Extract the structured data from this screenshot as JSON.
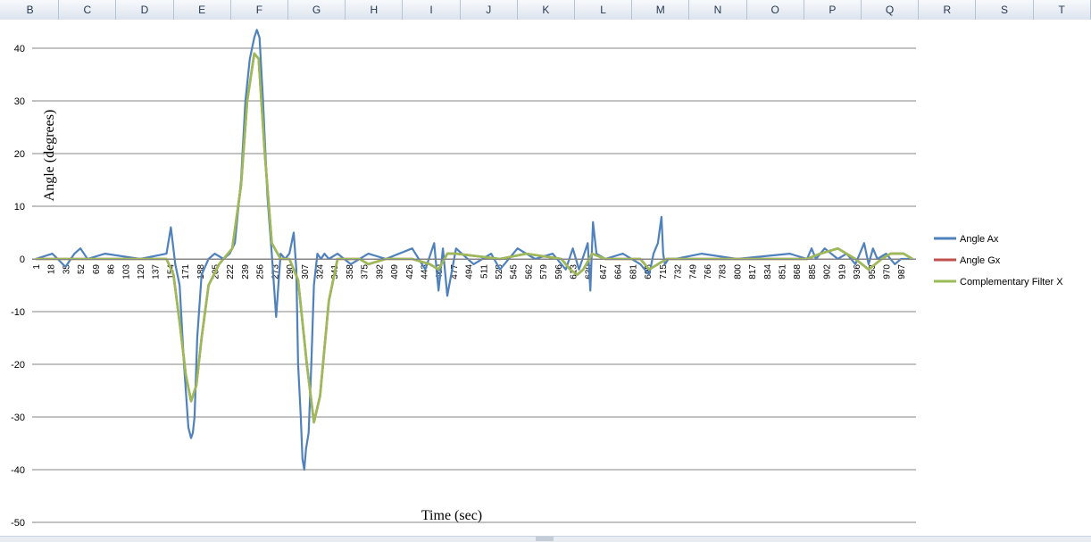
{
  "columns": [
    "B",
    "C",
    "D",
    "E",
    "F",
    "G",
    "H",
    "I",
    "J",
    "K",
    "L",
    "M",
    "N",
    "O",
    "P",
    "Q",
    "R",
    "S",
    "T"
  ],
  "chart_data": {
    "type": "line",
    "xlabel": "Time (sec)",
    "ylabel": "Angle (degrees)",
    "ylim": [
      -50,
      40
    ],
    "yticks": [
      40,
      30,
      20,
      10,
      0,
      -10,
      -20,
      -30,
      -40,
      -50
    ],
    "xlim": [
      1,
      1000
    ],
    "xticks": [
      1,
      18,
      35,
      52,
      69,
      86,
      103,
      120,
      137,
      154,
      171,
      188,
      205,
      222,
      239,
      256,
      273,
      290,
      307,
      324,
      341,
      358,
      375,
      392,
      409,
      426,
      443,
      460,
      477,
      494,
      511,
      528,
      545,
      562,
      579,
      596,
      613,
      630,
      647,
      664,
      681,
      698,
      715,
      732,
      749,
      766,
      783,
      800,
      817,
      834,
      851,
      868,
      885,
      902,
      919,
      936,
      953,
      970,
      987
    ],
    "grid": "horizontal",
    "legend": "right",
    "series": [
      {
        "name": "Angle Ax",
        "color": "#4f81bd",
        "x": [
          1,
          20,
          35,
          45,
          52,
          60,
          80,
          120,
          150,
          155,
          160,
          165,
          170,
          175,
          178,
          180,
          182,
          185,
          190,
          198,
          205,
          215,
          222,
          228,
          235,
          240,
          245,
          250,
          253,
          256,
          260,
          265,
          270,
          275,
          280,
          285,
          290,
          295,
          298,
          300,
          303,
          305,
          307,
          309,
          312,
          315,
          318,
          322,
          326,
          330,
          335,
          345,
          360,
          380,
          400,
          430,
          445,
          455,
          460,
          465,
          470,
          480,
          500,
          520,
          530,
          550,
          570,
          590,
          605,
          613,
          620,
          630,
          633,
          636,
          640,
          650,
          670,
          690,
          700,
          705,
          710,
          714,
          716,
          718,
          722,
          730,
          760,
          800,
          860,
          880,
          885,
          890,
          900,
          915,
          925,
          935,
          945,
          950,
          955,
          960,
          970,
          980,
          987,
          1000
        ],
        "y": [
          0,
          1,
          -1.5,
          1,
          2,
          0,
          1,
          0,
          1,
          6,
          -1,
          -5,
          -20,
          -32,
          -34,
          -33,
          -30,
          -15,
          -3,
          0,
          1,
          0,
          1,
          3,
          15,
          30,
          38,
          42,
          43.5,
          42,
          30,
          12,
          1,
          -11,
          1,
          0,
          1,
          5,
          -2,
          -20,
          -30,
          -38,
          -40,
          -36,
          -33,
          -20,
          -5,
          1,
          0,
          1,
          0,
          1,
          -1,
          1,
          0,
          2,
          -2,
          3,
          -6,
          2,
          -7,
          2,
          -1,
          1,
          -2,
          2,
          0,
          1,
          -2,
          2,
          -2,
          3,
          -6,
          7,
          1,
          0,
          1,
          -1,
          -3,
          1,
          3,
          8,
          1,
          -1,
          0,
          0,
          1,
          0,
          1,
          0,
          2,
          0,
          2,
          0,
          1,
          -1,
          3,
          -1,
          2,
          0,
          1,
          -1,
          0,
          0
        ]
      },
      {
        "name": "Angle Gx",
        "color": "#c0504d",
        "x": [
          1,
          150,
          158,
          165,
          172,
          178,
          184,
          190,
          198,
          210,
          225,
          235,
          242,
          250,
          255,
          262,
          270,
          280,
          290,
          300,
          310,
          318,
          325,
          335,
          345,
          370,
          380,
          400,
          430,
          450,
          460,
          470,
          480,
          530,
          560,
          600,
          610,
          618,
          625,
          635,
          650,
          690,
          700,
          710,
          720,
          760,
          880,
          895,
          915,
          935,
          950,
          965,
          975,
          990,
          1000
        ],
        "y": [
          0,
          0,
          -3,
          -12,
          -22,
          -27,
          -24,
          -15,
          -5,
          -1,
          2,
          14,
          30,
          39,
          38,
          20,
          3,
          0,
          0,
          -4,
          -20,
          -31,
          -26,
          -8,
          0,
          0,
          -1,
          0,
          0,
          -1,
          -2,
          1,
          1,
          0,
          1,
          0,
          -2,
          -3,
          -2,
          1,
          0,
          0,
          -2,
          -1,
          0,
          0,
          0,
          1,
          2,
          0,
          -2,
          0,
          1,
          1,
          0
        ]
      },
      {
        "name": "Complementary Filter X",
        "color": "#9bbb59",
        "x": [
          1,
          150,
          158,
          165,
          172,
          178,
          184,
          190,
          198,
          210,
          225,
          235,
          242,
          250,
          255,
          262,
          270,
          280,
          290,
          300,
          310,
          318,
          325,
          335,
          345,
          370,
          380,
          400,
          430,
          450,
          460,
          470,
          480,
          530,
          560,
          600,
          610,
          618,
          625,
          635,
          650,
          690,
          700,
          710,
          720,
          760,
          880,
          895,
          915,
          935,
          950,
          965,
          975,
          990,
          1000
        ],
        "y": [
          0,
          0,
          -3,
          -12,
          -22,
          -27,
          -24,
          -15,
          -5,
          -1,
          2,
          14,
          30,
          39,
          38,
          20,
          3,
          0,
          0,
          -4,
          -20,
          -31,
          -26,
          -8,
          0,
          0,
          -1,
          0,
          0,
          -1,
          -2,
          1,
          1,
          0,
          1,
          0,
          -2,
          -3,
          -2,
          1,
          0,
          0,
          -2,
          -1,
          0,
          0,
          0,
          1,
          2,
          0,
          -2,
          0,
          1,
          1,
          0
        ]
      }
    ]
  }
}
